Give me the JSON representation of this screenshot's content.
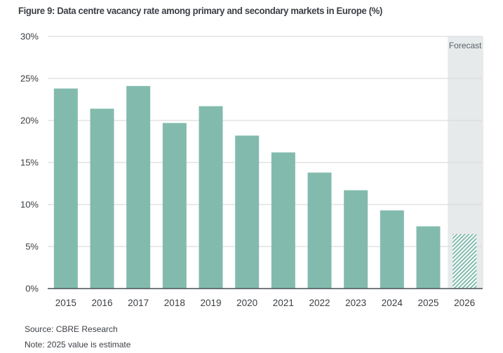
{
  "figure": {
    "title": "Figure 9: Data centre vacancy rate among primary and secondary markets in Europe (%)",
    "source": "Source: CBRE Research",
    "note": "Note: 2025 value is estimate"
  },
  "colors": {
    "bar": "#82bbad",
    "forecast_bg": "#e6eaeb",
    "grid": "#dcdcdc",
    "axis": "#4a4f55"
  },
  "chart_data": {
    "type": "bar",
    "title": "Figure 9: Data centre vacancy rate among primary and secondary markets in Europe (%)",
    "xlabel": "",
    "ylabel": "",
    "categories": [
      "2015",
      "2016",
      "2017",
      "2018",
      "2019",
      "2020",
      "2021",
      "2022",
      "2023",
      "2024",
      "2025",
      "2026"
    ],
    "values": [
      23.8,
      21.4,
      24.1,
      19.7,
      21.7,
      18.2,
      16.2,
      13.8,
      11.7,
      9.3,
      7.4,
      6.5
    ],
    "units": "%",
    "ylim": [
      0,
      30
    ],
    "yticks": [
      0,
      5,
      10,
      15,
      20,
      25,
      30
    ],
    "ytick_labels": [
      "0%",
      "5%",
      "10%",
      "15%",
      "20%",
      "25%",
      "30%"
    ],
    "grid": true,
    "forecast": {
      "label": "Forecast",
      "categories": [
        "2026"
      ]
    },
    "annotations": [
      "Forecast"
    ],
    "legend": "none"
  }
}
